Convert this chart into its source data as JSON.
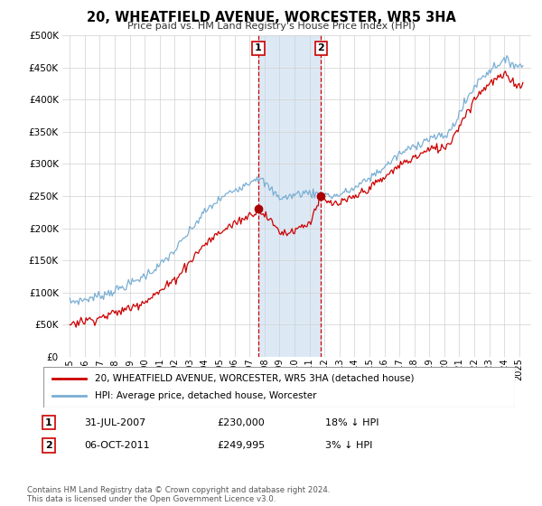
{
  "title": "20, WHEATFIELD AVENUE, WORCESTER, WR5 3HA",
  "subtitle": "Price paid vs. HM Land Registry's House Price Index (HPI)",
  "legend_line1": "20, WHEATFIELD AVENUE, WORCESTER, WR5 3HA (detached house)",
  "legend_line2": "HPI: Average price, detached house, Worcester",
  "transaction1_date": "31-JUL-2007",
  "transaction1_price": "£230,000",
  "transaction1_hpi": "18% ↓ HPI",
  "transaction1_year": 2007.58,
  "transaction1_value": 230000,
  "transaction2_date": "06-OCT-2011",
  "transaction2_price": "£249,995",
  "transaction2_hpi": "3% ↓ HPI",
  "transaction2_year": 2011.77,
  "transaction2_value": 249995,
  "footer": "Contains HM Land Registry data © Crown copyright and database right 2024.\nThis data is licensed under the Open Government Licence v3.0.",
  "house_color": "#cc0000",
  "hpi_color": "#7bafd4",
  "shading_color": "#dce9f5",
  "marker_color": "#aa0000",
  "ylim_min": 0,
  "ylim_max": 500000,
  "ytick_step": 50000,
  "xlim_min": 1994.5,
  "xlim_max": 2025.8
}
